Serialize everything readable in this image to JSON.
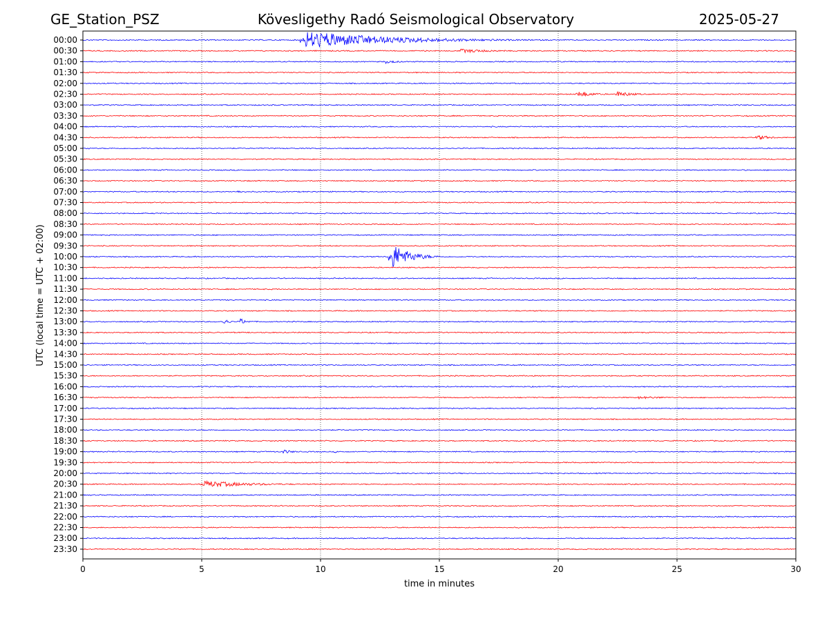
{
  "header": {
    "station": "GE_Station_PSZ",
    "observatory": "Kövesligethy Radó Seismological Observatory",
    "date": "2025-05-27"
  },
  "chart_data": {
    "type": "line",
    "title": "Kövesligethy Radó Seismological Observatory",
    "xlabel": "time in minutes",
    "ylabel": "UTC (local time = UTC + 02:00)",
    "xlim": [
      0,
      30
    ],
    "x_ticks": [
      0,
      5,
      10,
      15,
      20,
      25,
      30
    ],
    "vertical_grid": [
      5,
      10,
      15,
      20,
      25
    ],
    "grid": "vertical dotted",
    "trace_colors": [
      "#0000ff",
      "#ff0000"
    ],
    "traces": [
      {
        "label": "00:00",
        "events": [
          {
            "t": 9.2,
            "amp": 1.6,
            "dur": 7.5
          }
        ]
      },
      {
        "label": "00:30",
        "events": [
          {
            "t": 15.8,
            "amp": 0.35,
            "dur": 3.5
          }
        ]
      },
      {
        "label": "01:00",
        "events": [
          {
            "t": 12.7,
            "amp": 0.35,
            "dur": 1.2
          }
        ]
      },
      {
        "label": "01:30",
        "events": []
      },
      {
        "label": "02:00",
        "events": []
      },
      {
        "label": "02:30",
        "events": [
          {
            "t": 20.8,
            "amp": 0.6,
            "dur": 1.4
          },
          {
            "t": 22.4,
            "amp": 0.5,
            "dur": 1.6
          }
        ]
      },
      {
        "label": "03:00",
        "events": []
      },
      {
        "label": "03:30",
        "events": []
      },
      {
        "label": "04:00",
        "events": []
      },
      {
        "label": "04:30",
        "events": [
          {
            "t": 28.3,
            "amp": 0.45,
            "dur": 1.5
          }
        ]
      },
      {
        "label": "05:00",
        "events": [
          {
            "t": 0.1,
            "amp": 0.2,
            "dur": 0.6
          }
        ]
      },
      {
        "label": "05:30",
        "events": []
      },
      {
        "label": "06:00",
        "events": []
      },
      {
        "label": "06:30",
        "events": []
      },
      {
        "label": "07:00",
        "events": [
          {
            "t": 6.5,
            "amp": 0.3,
            "dur": 0.7
          }
        ]
      },
      {
        "label": "07:30",
        "events": []
      },
      {
        "label": "08:00",
        "events": []
      },
      {
        "label": "08:30",
        "events": []
      },
      {
        "label": "09:00",
        "events": []
      },
      {
        "label": "09:30",
        "events": []
      },
      {
        "label": "10:00",
        "events": [
          {
            "t": 12.9,
            "amp": 2.6,
            "dur": 1.6
          }
        ]
      },
      {
        "label": "10:30",
        "events": []
      },
      {
        "label": "11:00",
        "events": []
      },
      {
        "label": "11:30",
        "events": []
      },
      {
        "label": "12:00",
        "events": []
      },
      {
        "label": "12:30",
        "events": []
      },
      {
        "label": "13:00",
        "events": [
          {
            "t": 5.9,
            "amp": 0.6,
            "dur": 0.5
          },
          {
            "t": 6.6,
            "amp": 0.6,
            "dur": 0.6
          }
        ]
      },
      {
        "label": "13:30",
        "events": []
      },
      {
        "label": "14:00",
        "events": []
      },
      {
        "label": "14:30",
        "events": []
      },
      {
        "label": "15:00",
        "events": []
      },
      {
        "label": "15:30",
        "events": []
      },
      {
        "label": "16:00",
        "events": []
      },
      {
        "label": "16:30",
        "events": [
          {
            "t": 23.3,
            "amp": 0.25,
            "dur": 3.0
          }
        ]
      },
      {
        "label": "17:00",
        "events": []
      },
      {
        "label": "17:30",
        "events": []
      },
      {
        "label": "18:00",
        "events": []
      },
      {
        "label": "18:30",
        "events": []
      },
      {
        "label": "19:00",
        "events": [
          {
            "t": 8.4,
            "amp": 0.4,
            "dur": 0.9
          },
          {
            "t": 10.6,
            "amp": 0.2,
            "dur": 0.3
          }
        ]
      },
      {
        "label": "19:30",
        "events": []
      },
      {
        "label": "20:00",
        "events": []
      },
      {
        "label": "20:30",
        "events": [
          {
            "t": 5.0,
            "amp": 0.6,
            "dur": 4.5
          }
        ]
      },
      {
        "label": "21:00",
        "events": []
      },
      {
        "label": "21:30",
        "events": []
      },
      {
        "label": "22:00",
        "events": []
      },
      {
        "label": "22:30",
        "events": []
      },
      {
        "label": "23:00",
        "events": []
      },
      {
        "label": "23:30",
        "events": []
      }
    ]
  }
}
